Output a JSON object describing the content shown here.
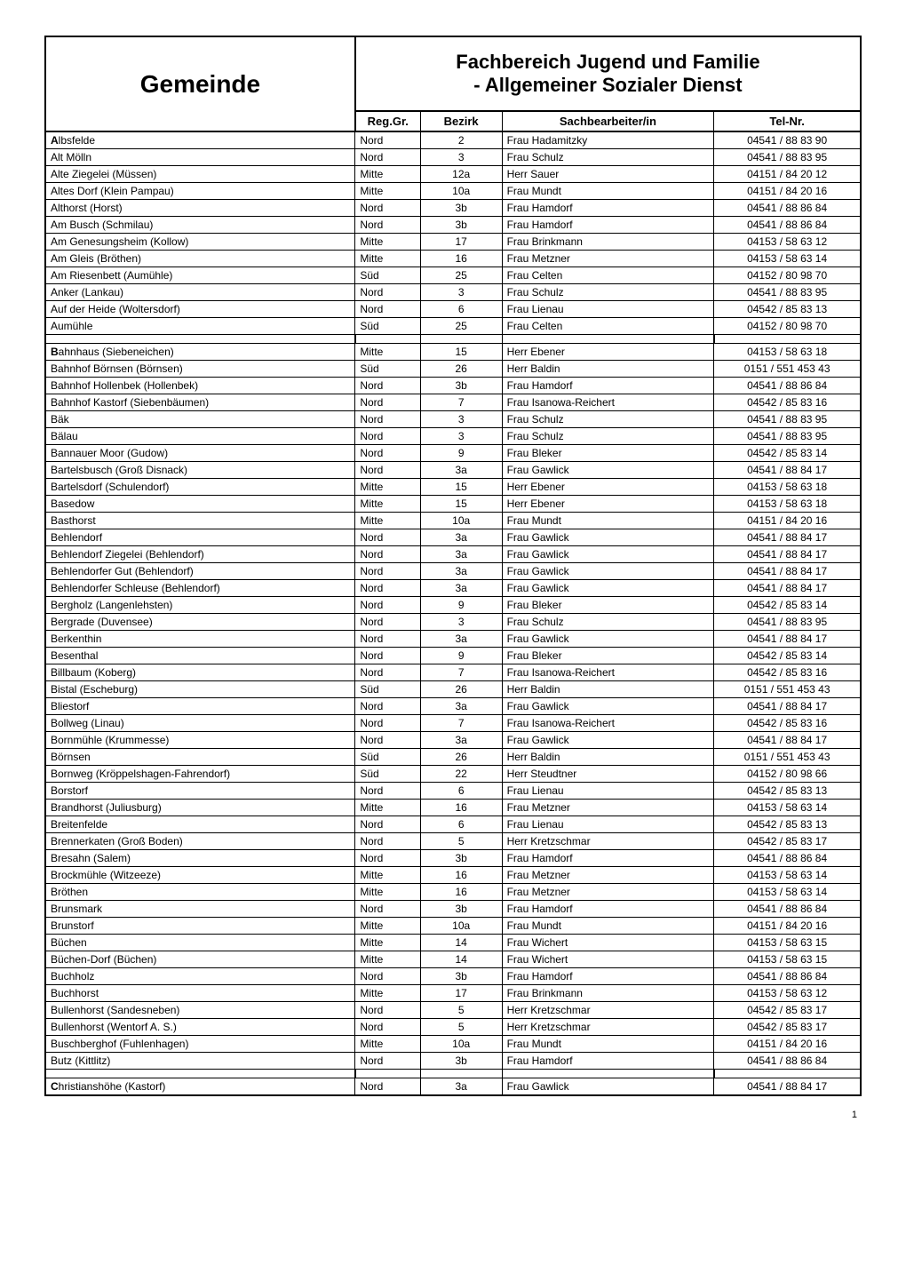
{
  "header": {
    "gemeinde_title": "Gemeinde",
    "fachbereich_title_line1": "Fachbereich Jugend und Familie",
    "fachbereich_title_line2": "- Allgemeiner Sozialer Dienst"
  },
  "columns": {
    "reggr": "Reg.Gr.",
    "bezirk": "Bezirk",
    "sachb": "Sachbearbeiter/in",
    "tel": "Tel-Nr."
  },
  "table": {
    "rows": [
      {
        "gemeinde": "Albsfelde",
        "reggr": "Nord",
        "bezirk": "2",
        "sachb": "Frau Hadamitzky",
        "tel": "04541 / 88 83 90",
        "letter_start": true
      },
      {
        "gemeinde": "Alt Mölln",
        "reggr": "Nord",
        "bezirk": "3",
        "sachb": "Frau Schulz",
        "tel": "04541 / 88 83 95"
      },
      {
        "gemeinde": "Alte Ziegelei (Müssen)",
        "reggr": "Mitte",
        "bezirk": "12a",
        "sachb": "Herr Sauer",
        "tel": "04151 / 84 20 12"
      },
      {
        "gemeinde": "Altes Dorf (Klein Pampau)",
        "reggr": "Mitte",
        "bezirk": "10a",
        "sachb": "Frau Mundt",
        "tel": "04151 / 84 20 16"
      },
      {
        "gemeinde": "Althorst (Horst)",
        "reggr": "Nord",
        "bezirk": "3b",
        "sachb": "Frau Hamdorf",
        "tel": "04541 / 88 86 84"
      },
      {
        "gemeinde": "Am Busch (Schmilau)",
        "reggr": "Nord",
        "bezirk": "3b",
        "sachb": "Frau Hamdorf",
        "tel": "04541 / 88 86 84"
      },
      {
        "gemeinde": "Am Genesungsheim (Kollow)",
        "reggr": "Mitte",
        "bezirk": "17",
        "sachb": "Frau Brinkmann",
        "tel": "04153 / 58 63 12"
      },
      {
        "gemeinde": "Am Gleis (Bröthen)",
        "reggr": "Mitte",
        "bezirk": "16",
        "sachb": "Frau Metzner",
        "tel": "04153 / 58 63 14"
      },
      {
        "gemeinde": "Am Riesenbett (Aumühle)",
        "reggr": "Süd",
        "bezirk": "25",
        "sachb": "Frau Celten",
        "tel": "04152 / 80 98 70"
      },
      {
        "gemeinde": "Anker (Lankau)",
        "reggr": "Nord",
        "bezirk": "3",
        "sachb": "Frau Schulz",
        "tel": "04541 / 88 83 95"
      },
      {
        "gemeinde": "Auf der Heide (Woltersdorf)",
        "reggr": "Nord",
        "bezirk": "6",
        "sachb": "Frau Lienau",
        "tel": "04542 / 85 83 13"
      },
      {
        "gemeinde": "Aumühle",
        "reggr": "Süd",
        "bezirk": "25",
        "sachb": "Frau Celten",
        "tel": "04152 / 80 98 70"
      },
      {
        "spacer": true
      },
      {
        "gemeinde": "Bahnhaus (Siebeneichen)",
        "reggr": "Mitte",
        "bezirk": "15",
        "sachb": "Herr Ebener",
        "tel": "04153 / 58 63 18",
        "letter_start": true
      },
      {
        "gemeinde": "Bahnhof Börnsen (Börnsen)",
        "reggr": "Süd",
        "bezirk": "26",
        "sachb": "Herr Baldin",
        "tel": "0151 / 551 453 43"
      },
      {
        "gemeinde": "Bahnhof Hollenbek (Hollenbek)",
        "reggr": "Nord",
        "bezirk": "3b",
        "sachb": "Frau Hamdorf",
        "tel": "04541 / 88 86 84"
      },
      {
        "gemeinde": "Bahnhof Kastorf (Siebenbäumen)",
        "reggr": "Nord",
        "bezirk": "7",
        "sachb": "Frau Isanowa-Reichert",
        "tel": "04542 / 85 83 16"
      },
      {
        "gemeinde": "Bäk",
        "reggr": "Nord",
        "bezirk": "3",
        "sachb": "Frau Schulz",
        "tel": "04541 / 88 83 95"
      },
      {
        "gemeinde": "Bälau",
        "reggr": "Nord",
        "bezirk": "3",
        "sachb": "Frau Schulz",
        "tel": "04541 / 88 83 95"
      },
      {
        "gemeinde": "Bannauer Moor (Gudow)",
        "reggr": "Nord",
        "bezirk": "9",
        "sachb": "Frau Bleker",
        "tel": "04542 / 85 83 14"
      },
      {
        "gemeinde": "Bartelsbusch (Groß Disnack)",
        "reggr": "Nord",
        "bezirk": "3a",
        "sachb": "Frau Gawlick",
        "tel": "04541 / 88 84 17"
      },
      {
        "gemeinde": "Bartelsdorf (Schulendorf)",
        "reggr": "Mitte",
        "bezirk": "15",
        "sachb": "Herr Ebener",
        "tel": "04153 / 58 63 18"
      },
      {
        "gemeinde": "Basedow",
        "reggr": "Mitte",
        "bezirk": "15",
        "sachb": "Herr Ebener",
        "tel": "04153 / 58 63 18"
      },
      {
        "gemeinde": "Basthorst",
        "reggr": "Mitte",
        "bezirk": "10a",
        "sachb": "Frau Mundt",
        "tel": "04151 / 84 20 16"
      },
      {
        "gemeinde": "Behlendorf",
        "reggr": "Nord",
        "bezirk": "3a",
        "sachb": "Frau Gawlick",
        "tel": "04541 / 88 84 17"
      },
      {
        "gemeinde": "Behlendorf Ziegelei (Behlendorf)",
        "reggr": "Nord",
        "bezirk": "3a",
        "sachb": "Frau Gawlick",
        "tel": "04541 / 88 84 17"
      },
      {
        "gemeinde": "Behlendorfer Gut (Behlendorf)",
        "reggr": "Nord",
        "bezirk": "3a",
        "sachb": "Frau Gawlick",
        "tel": "04541 / 88 84 17"
      },
      {
        "gemeinde": "Behlendorfer Schleuse (Behlendorf)",
        "reggr": "Nord",
        "bezirk": "3a",
        "sachb": "Frau Gawlick",
        "tel": "04541 / 88 84 17"
      },
      {
        "gemeinde": "Bergholz (Langenlehsten)",
        "reggr": "Nord",
        "bezirk": "9",
        "sachb": "Frau Bleker",
        "tel": "04542 / 85 83 14"
      },
      {
        "gemeinde": "Bergrade (Duvensee)",
        "reggr": "Nord",
        "bezirk": "3",
        "sachb": "Frau Schulz",
        "tel": "04541 / 88 83 95"
      },
      {
        "gemeinde": "Berkenthin",
        "reggr": "Nord",
        "bezirk": "3a",
        "sachb": "Frau Gawlick",
        "tel": "04541 / 88 84 17"
      },
      {
        "gemeinde": "Besenthal",
        "reggr": "Nord",
        "bezirk": "9",
        "sachb": "Frau Bleker",
        "tel": "04542 / 85 83 14"
      },
      {
        "gemeinde": "Billbaum (Koberg)",
        "reggr": "Nord",
        "bezirk": "7",
        "sachb": "Frau Isanowa-Reichert",
        "tel": "04542 / 85 83 16"
      },
      {
        "gemeinde": "Bistal (Escheburg)",
        "reggr": "Süd",
        "bezirk": "26",
        "sachb": "Herr Baldin",
        "tel": "0151 / 551 453 43"
      },
      {
        "gemeinde": "Bliestorf",
        "reggr": "Nord",
        "bezirk": "3a",
        "sachb": "Frau Gawlick",
        "tel": "04541 / 88 84 17"
      },
      {
        "gemeinde": "Bollweg (Linau)",
        "reggr": "Nord",
        "bezirk": "7",
        "sachb": "Frau Isanowa-Reichert",
        "tel": "04542 / 85 83 16"
      },
      {
        "gemeinde": "Bornmühle (Krummesse)",
        "reggr": "Nord",
        "bezirk": "3a",
        "sachb": "Frau Gawlick",
        "tel": "04541 / 88 84 17"
      },
      {
        "gemeinde": "Börnsen",
        "reggr": "Süd",
        "bezirk": "26",
        "sachb": "Herr Baldin",
        "tel": "0151 / 551 453 43"
      },
      {
        "gemeinde": "Bornweg (Kröppelshagen-Fahrendorf)",
        "reggr": "Süd",
        "bezirk": "22",
        "sachb": "Herr Steudtner",
        "tel": "04152 / 80 98 66"
      },
      {
        "gemeinde": "Borstorf",
        "reggr": "Nord",
        "bezirk": "6",
        "sachb": "Frau Lienau",
        "tel": "04542 / 85 83 13"
      },
      {
        "gemeinde": "Brandhorst (Juliusburg)",
        "reggr": "Mitte",
        "bezirk": "16",
        "sachb": "Frau Metzner",
        "tel": "04153 / 58 63 14"
      },
      {
        "gemeinde": "Breitenfelde",
        "reggr": "Nord",
        "bezirk": "6",
        "sachb": "Frau Lienau",
        "tel": "04542 / 85 83 13"
      },
      {
        "gemeinde": "Brennerkaten (Groß Boden)",
        "reggr": "Nord",
        "bezirk": "5",
        "sachb": "Herr Kretzschmar",
        "tel": "04542 / 85 83 17"
      },
      {
        "gemeinde": "Bresahn (Salem)",
        "reggr": "Nord",
        "bezirk": "3b",
        "sachb": "Frau Hamdorf",
        "tel": "04541 / 88 86 84"
      },
      {
        "gemeinde": "Brockmühle (Witzeeze)",
        "reggr": "Mitte",
        "bezirk": "16",
        "sachb": "Frau Metzner",
        "tel": "04153 / 58 63 14"
      },
      {
        "gemeinde": "Bröthen",
        "reggr": "Mitte",
        "bezirk": "16",
        "sachb": "Frau Metzner",
        "tel": "04153 / 58 63 14"
      },
      {
        "gemeinde": "Brunsmark",
        "reggr": "Nord",
        "bezirk": "3b",
        "sachb": "Frau Hamdorf",
        "tel": "04541 / 88 86 84"
      },
      {
        "gemeinde": "Brunstorf",
        "reggr": "Mitte",
        "bezirk": "10a",
        "sachb": "Frau Mundt",
        "tel": "04151 / 84 20 16"
      },
      {
        "gemeinde": "Büchen",
        "reggr": "Mitte",
        "bezirk": "14",
        "sachb": "Frau Wichert",
        "tel": "04153 / 58 63 15"
      },
      {
        "gemeinde": "Büchen-Dorf (Büchen)",
        "reggr": "Mitte",
        "bezirk": "14",
        "sachb": "Frau Wichert",
        "tel": "04153 / 58 63 15"
      },
      {
        "gemeinde": "Buchholz",
        "reggr": "Nord",
        "bezirk": "3b",
        "sachb": "Frau Hamdorf",
        "tel": "04541 / 88 86 84"
      },
      {
        "gemeinde": "Buchhorst",
        "reggr": "Mitte",
        "bezirk": "17",
        "sachb": "Frau Brinkmann",
        "tel": "04153 / 58 63 12"
      },
      {
        "gemeinde": "Bullenhorst (Sandesneben)",
        "reggr": "Nord",
        "bezirk": "5",
        "sachb": "Herr Kretzschmar",
        "tel": "04542 / 85 83 17"
      },
      {
        "gemeinde": "Bullenhorst (Wentorf A. S.)",
        "reggr": "Nord",
        "bezirk": "5",
        "sachb": "Herr Kretzschmar",
        "tel": "04542 / 85 83 17"
      },
      {
        "gemeinde": "Buschberghof (Fuhlenhagen)",
        "reggr": "Mitte",
        "bezirk": "10a",
        "sachb": "Frau Mundt",
        "tel": "04151 / 84 20 16"
      },
      {
        "gemeinde": "Butz (Kittlitz)",
        "reggr": "Nord",
        "bezirk": "3b",
        "sachb": "Frau Hamdorf",
        "tel": "04541 / 88 86 84"
      },
      {
        "spacer": true
      },
      {
        "gemeinde": "Christianshöhe (Kastorf)",
        "reggr": "Nord",
        "bezirk": "3a",
        "sachb": "Frau Gawlick",
        "tel": "04541 / 88 84 17",
        "letter_start": true
      }
    ]
  },
  "page_number": "1",
  "styling": {
    "border_color": "#000000",
    "background_color": "#ffffff",
    "header_fontsize": 28,
    "subheader_fontsize": 22,
    "column_header_fontsize": 13,
    "data_fontsize": 12,
    "font_family": "Arial"
  }
}
